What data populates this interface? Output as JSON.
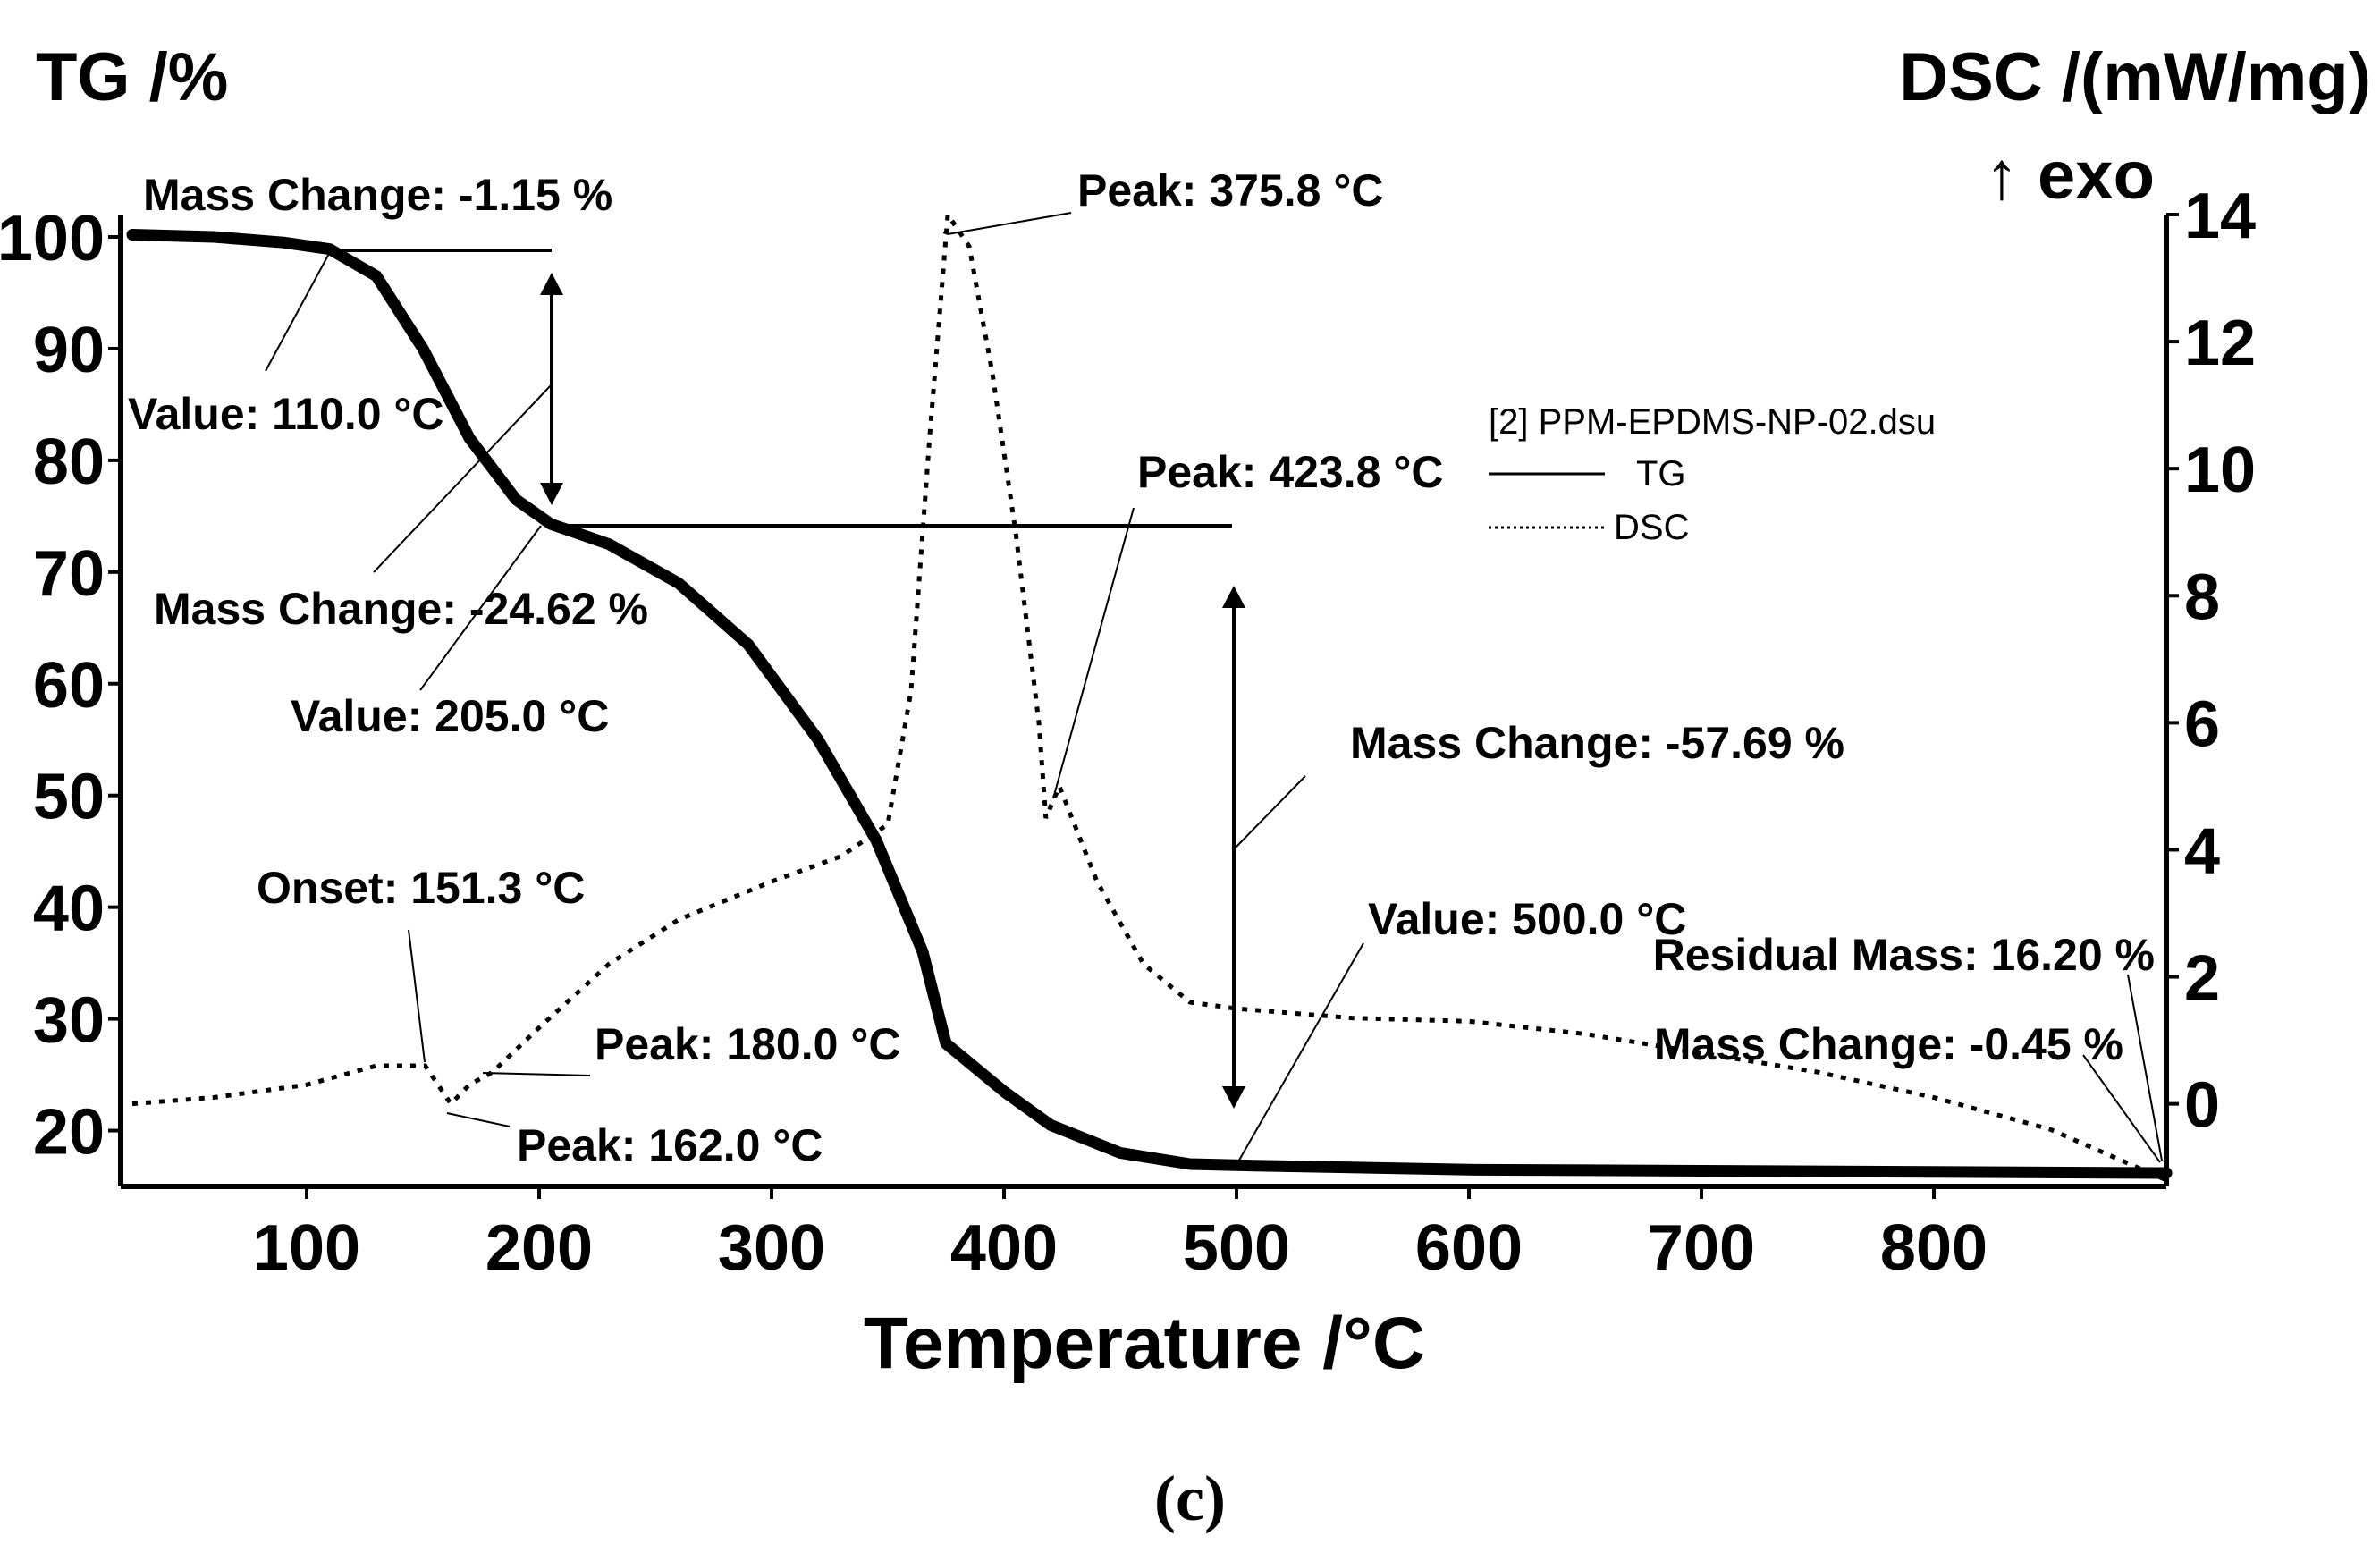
{
  "chart_data": {
    "type": "line",
    "xlabel": "Temperature /°C",
    "ylabel_left": "TG /%",
    "ylabel_right_line1": "DSC /(mW/mg)",
    "ylabel_right_line2": "↑ exo",
    "xlim": [
      20,
      900
    ],
    "ylim_left": [
      15,
      102
    ],
    "ylim_right": [
      -1.3,
      14
    ],
    "x_ticks": [
      100,
      200,
      300,
      400,
      500,
      600,
      700,
      800
    ],
    "y_left_ticks": [
      20,
      30,
      40,
      50,
      60,
      70,
      80,
      90,
      100
    ],
    "y_right_ticks": [
      0,
      2,
      4,
      6,
      8,
      10,
      12,
      14
    ],
    "legend": {
      "file": "[2] PPM-EPDMS-NP-02.dsu",
      "entries": [
        "TG",
        "DSC"
      ]
    },
    "caption": "(c)",
    "series": [
      {
        "name": "TG",
        "style": "solid",
        "axis": "left",
        "x": [
          25,
          60,
          90,
          110,
          130,
          150,
          170,
          190,
          205,
          230,
          260,
          290,
          320,
          345,
          365,
          375,
          400,
          420,
          450,
          480,
          500,
          600,
          700,
          800,
          900
        ],
        "y": [
          100.2,
          100,
          99.5,
          98.9,
          96.5,
          90,
          82,
          76.5,
          74.3,
          72.5,
          69,
          63.5,
          55,
          46,
          36,
          27.8,
          23.5,
          20.5,
          18,
          17,
          16.9,
          16.5,
          16.4,
          16.3,
          16.2
        ]
      },
      {
        "name": "DSC",
        "style": "dotted",
        "axis": "right",
        "x": [
          25,
          60,
          100,
          130,
          151,
          162,
          170,
          180,
          200,
          230,
          260,
          300,
          330,
          350,
          360,
          368,
          375.8,
          385,
          395,
          405,
          415,
          418,
          423.8,
          440,
          460,
          480,
          500,
          550,
          600,
          650,
          700,
          750,
          800,
          850,
          900
        ],
        "y": [
          0,
          0.1,
          0.3,
          0.6,
          0.6,
          0,
          0.3,
          0.5,
          1.2,
          2.2,
          2.9,
          3.5,
          3.9,
          4.4,
          6.5,
          10.5,
          14,
          13.5,
          11.5,
          9,
          6,
          4.5,
          5,
          3.5,
          2.2,
          1.6,
          1.5,
          1.35,
          1.3,
          1.1,
          0.8,
          0.5,
          0.1,
          -0.4,
          -1.2
        ]
      }
    ],
    "annotations": [
      {
        "text": "Mass Change: -1.15 %"
      },
      {
        "text": "Value: 110.0 °C"
      },
      {
        "text": "Mass Change: -24.62 %"
      },
      {
        "text": "Value: 205.0 °C"
      },
      {
        "text": "Onset: 151.3 °C"
      },
      {
        "text": "Peak: 162.0 °C"
      },
      {
        "text": "Peak: 180.0 °C"
      },
      {
        "text": "Peak: 375.8 °C"
      },
      {
        "text": "Peak: 423.8 °C"
      },
      {
        "text": "Mass Change: -57.69 %"
      },
      {
        "text": "Value: 500.0 °C"
      },
      {
        "text": "Residual Mass: 16.20 %"
      },
      {
        "text": "Mass Change: -0.45 %"
      }
    ]
  }
}
